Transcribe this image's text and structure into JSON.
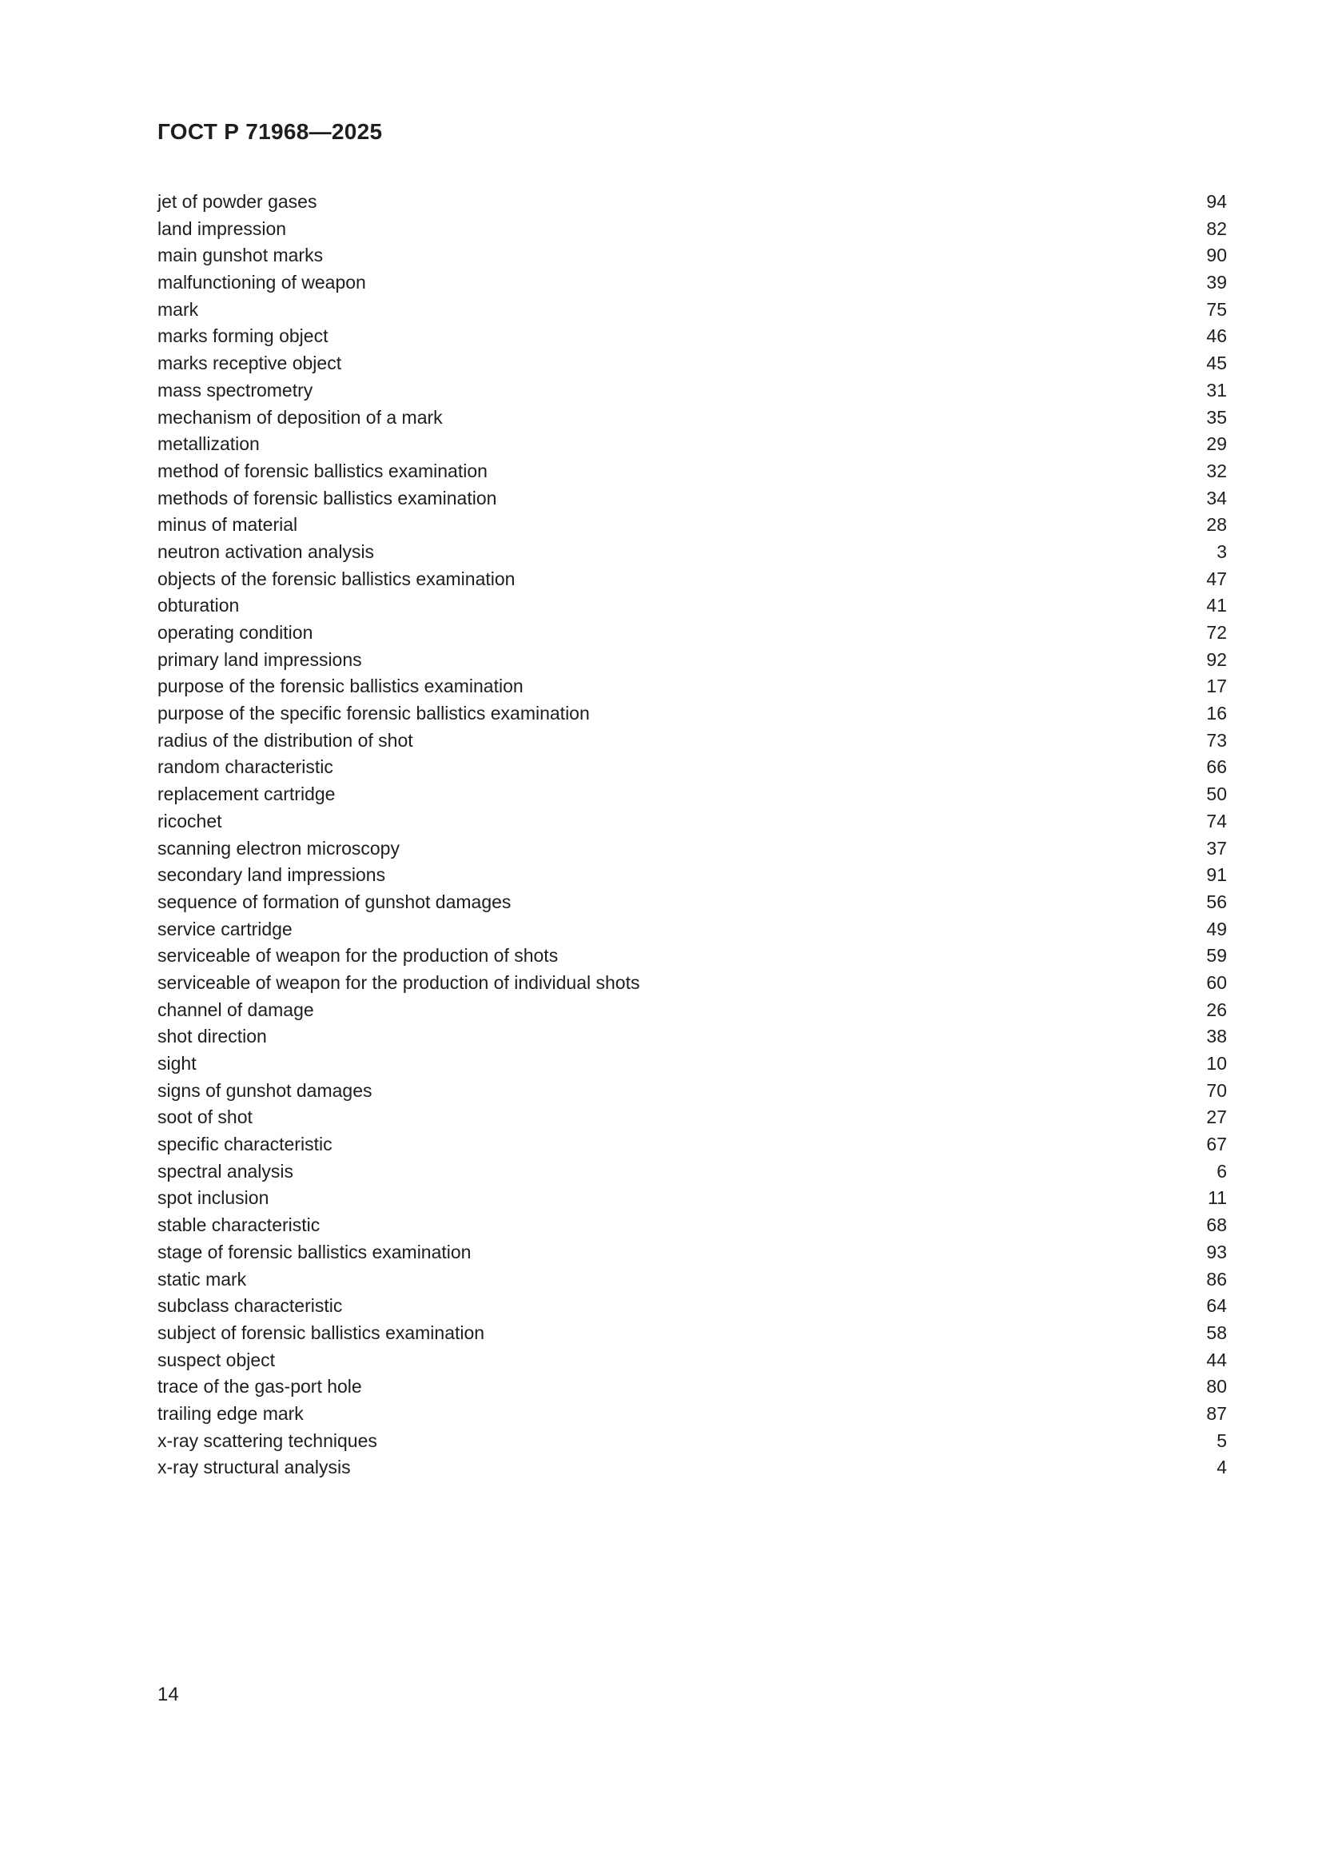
{
  "document": {
    "standard_code": "ГОСТ Р 71968—2025",
    "page_number": "14"
  },
  "index": {
    "entries": [
      {
        "term": "jet of powder gases",
        "page": "94"
      },
      {
        "term": "land impression",
        "page": "82"
      },
      {
        "term": "main gunshot marks",
        "page": "90"
      },
      {
        "term": "malfunctioning of weapon",
        "page": "39"
      },
      {
        "term": "mark",
        "page": "75"
      },
      {
        "term": "marks forming object",
        "page": "46"
      },
      {
        "term": "marks receptive object",
        "page": "45"
      },
      {
        "term": "mass spectrometry",
        "page": "31"
      },
      {
        "term": "mechanism of deposition of a mark",
        "page": "35"
      },
      {
        "term": "metallization",
        "page": "29"
      },
      {
        "term": "method of forensic ballistics examination",
        "page": "32"
      },
      {
        "term": "methods of forensic ballistics examination",
        "page": "34"
      },
      {
        "term": "minus of material",
        "page": "28"
      },
      {
        "term": "neutron activation analysis",
        "page": "3"
      },
      {
        "term": "objects of the forensic ballistics examination",
        "page": "47"
      },
      {
        "term": "obturation",
        "page": "41"
      },
      {
        "term": "operating condition",
        "page": "72"
      },
      {
        "term": "primary land impressions",
        "page": "92"
      },
      {
        "term": "purpose of the forensic ballistics examination",
        "page": "17"
      },
      {
        "term": "purpose of the specific forensic ballistics examination",
        "page": "16"
      },
      {
        "term": "radius of the distribution of shot",
        "page": "73"
      },
      {
        "term": "random characteristic",
        "page": "66"
      },
      {
        "term": "replacement cartridge",
        "page": "50"
      },
      {
        "term": "ricochet",
        "page": "74"
      },
      {
        "term": "scanning electron microscopy",
        "page": "37"
      },
      {
        "term": "secondary land impressions",
        "page": "91"
      },
      {
        "term": "sequence of formation of gunshot damages",
        "page": "56"
      },
      {
        "term": "service cartridge",
        "page": "49"
      },
      {
        "term": "serviceable of weapon for the production of shots",
        "page": "59"
      },
      {
        "term": "serviceable of weapon for the production of individual shots",
        "page": "60"
      },
      {
        "term": "channel of damage",
        "page": "26"
      },
      {
        "term": "shot direction",
        "page": "38"
      },
      {
        "term": "sight",
        "page": "10"
      },
      {
        "term": "signs of gunshot damages",
        "page": "70"
      },
      {
        "term": "soot of shot",
        "page": "27"
      },
      {
        "term": "specific characteristic",
        "page": "67"
      },
      {
        "term": "spectral analysis",
        "page": "6"
      },
      {
        "term": "spot inclusion",
        "page": "11"
      },
      {
        "term": "stable characteristic",
        "page": "68"
      },
      {
        "term": "stage of forensic ballistics examination",
        "page": "93"
      },
      {
        "term": "static mark",
        "page": "86"
      },
      {
        "term": "subclass characteristic",
        "page": "64"
      },
      {
        "term": "subject of forensic ballistics examination",
        "page": "58"
      },
      {
        "term": "suspect object",
        "page": "44"
      },
      {
        "term": "trace of the gas-port hole",
        "page": "80"
      },
      {
        "term": "trailing edge mark",
        "page": "87"
      },
      {
        "term": "x-ray scattering techniques",
        "page": "5"
      },
      {
        "term": "x-ray structural analysis",
        "page": "4"
      }
    ]
  }
}
